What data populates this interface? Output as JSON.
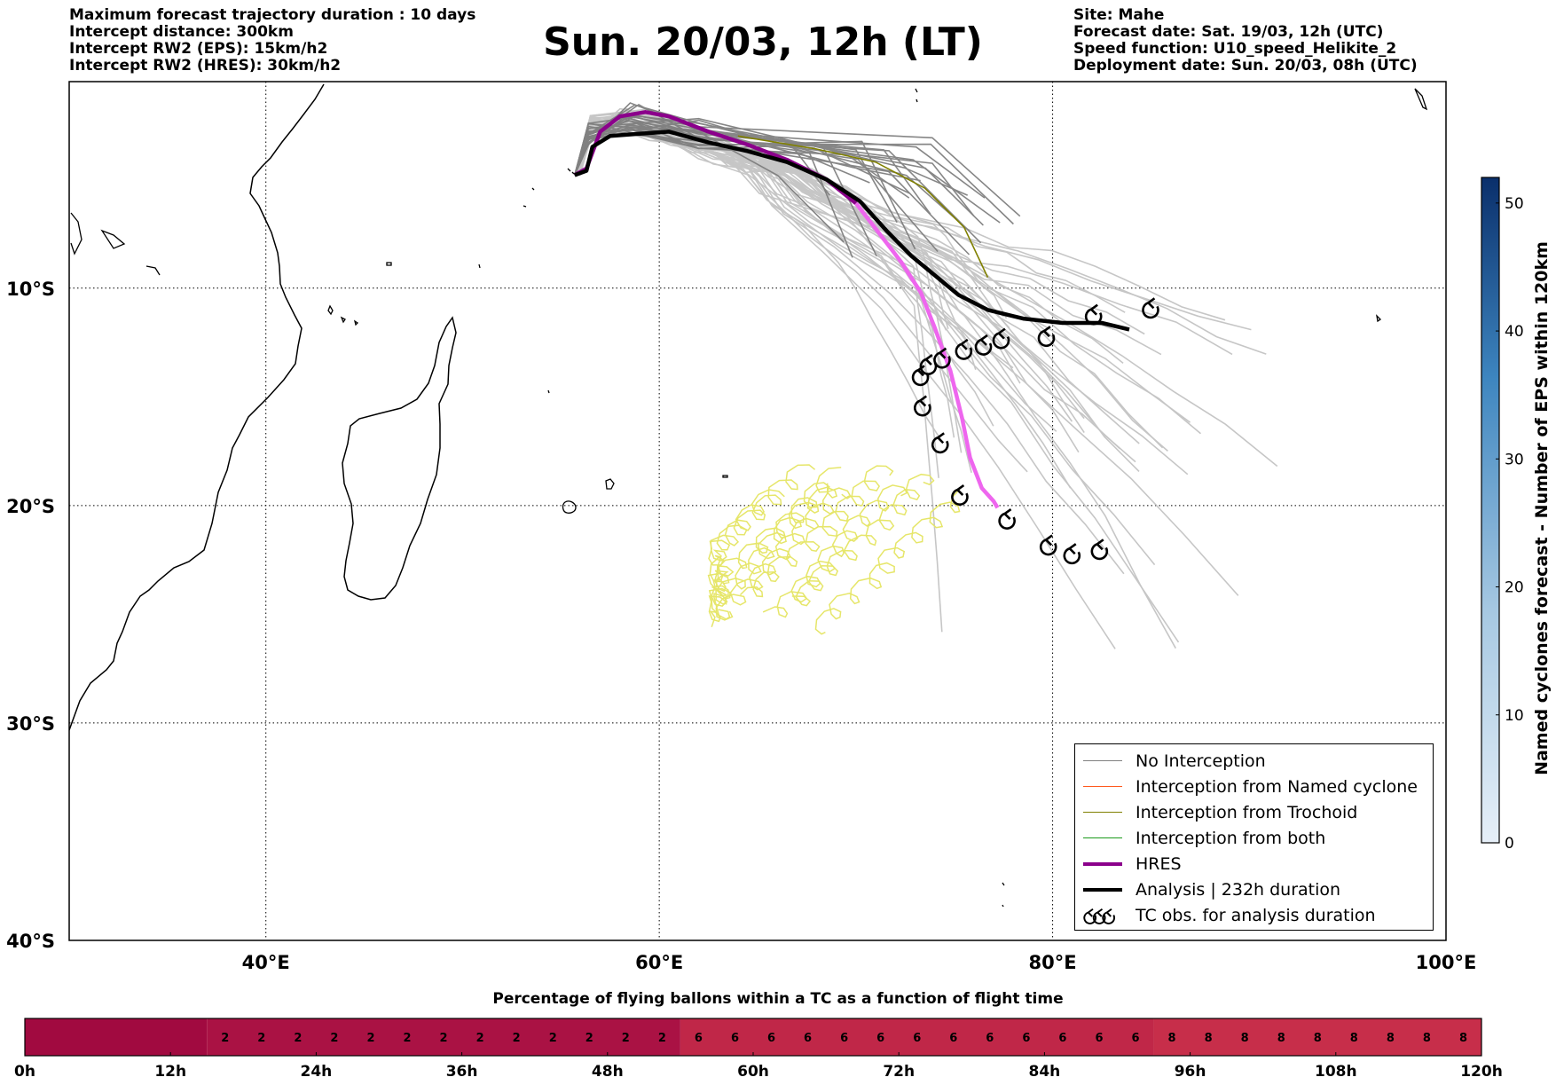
{
  "header": {
    "title": "Sun. 20/03, 12h (LT)",
    "left_lines": [
      "Maximum forecast trajectory duration : 10 days",
      "Intercept distance: 300km",
      "Intercept RW2 (EPS):  15km/h2",
      "Intercept RW2 (HRES): 30km/h2"
    ],
    "right_lines": [
      "Site: Mahe",
      "Forecast date: Sat. 19/03, 12h (UTC)",
      "Speed function: U10_speed_Helikite_2",
      "Deployment date: Sun. 20/03, 08h (UTC)"
    ]
  },
  "map": {
    "lon_range": [
      30,
      100
    ],
    "lat_range": [
      -40,
      -0.5
    ],
    "lon_ticks": [
      {
        "value": 40,
        "label": "40°E"
      },
      {
        "value": 60,
        "label": "60°E"
      },
      {
        "value": 80,
        "label": "80°E"
      },
      {
        "value": 100,
        "label": "100°E"
      }
    ],
    "lat_ticks": [
      {
        "value": -10,
        "label": "10°S"
      },
      {
        "value": -20,
        "label": "20°S"
      },
      {
        "value": -30,
        "label": "30°S"
      },
      {
        "value": -40,
        "label": "40°S"
      }
    ],
    "grid": "dotted"
  },
  "legend": {
    "items": [
      {
        "label": "No Interception",
        "color": "#808080",
        "style": "line-thin"
      },
      {
        "label": "Interception from Named cyclone",
        "color": "#ff5a1e",
        "style": "line-thin"
      },
      {
        "label": "Interception from Trochoid",
        "color": "#808000",
        "style": "line-thin"
      },
      {
        "label": "Interception from both",
        "color": "#1a9a1a",
        "style": "line-thin"
      },
      {
        "label": "HRES",
        "color": "#8b008b",
        "style": "line-thick"
      },
      {
        "label": "Analysis | 232h duration",
        "color": "#000000",
        "style": "line-thick"
      },
      {
        "label": "TC obs. for analysis duration",
        "color": "#000000",
        "style": "tc-symbol",
        "icon": "cyclone-icon"
      }
    ]
  },
  "chart_data": {
    "type": "map",
    "tracks": {
      "analysis": [
        [
          55.7,
          -4.8
        ],
        [
          56.3,
          -4.6
        ],
        [
          56.6,
          -3.5
        ],
        [
          57.5,
          -3.0
        ],
        [
          59.0,
          -2.9
        ],
        [
          60.5,
          -2.8
        ],
        [
          62.5,
          -3.3
        ],
        [
          64.5,
          -3.7
        ],
        [
          66.5,
          -4.2
        ],
        [
          68.5,
          -5.0
        ],
        [
          70.2,
          -6.0
        ],
        [
          71.6,
          -7.4
        ],
        [
          72.8,
          -8.5
        ],
        [
          74.0,
          -9.4
        ],
        [
          75.2,
          -10.3
        ],
        [
          76.7,
          -11.0
        ],
        [
          78.5,
          -11.4
        ],
        [
          80.5,
          -11.6
        ],
        [
          82.5,
          -11.6
        ],
        [
          83.9,
          -11.9
        ]
      ],
      "hres": [
        [
          55.7,
          -4.8
        ],
        [
          56.3,
          -4.5
        ],
        [
          57.0,
          -2.8
        ],
        [
          58.0,
          -2.1
        ],
        [
          59.3,
          -1.9
        ],
        [
          60.5,
          -2.1
        ],
        [
          62.5,
          -2.8
        ],
        [
          64.5,
          -3.4
        ],
        [
          66.5,
          -4.1
        ],
        [
          68.5,
          -5.0
        ],
        [
          70.0,
          -6.1
        ],
        [
          71.2,
          -7.5
        ],
        [
          72.3,
          -8.8
        ],
        [
          73.3,
          -10.2
        ],
        [
          74.0,
          -11.8
        ],
        [
          74.8,
          -13.8
        ],
        [
          75.4,
          -16.0
        ],
        [
          75.8,
          -17.8
        ],
        [
          76.4,
          -19.2
        ],
        [
          77.0,
          -19.8
        ],
        [
          77.2,
          -20.1
        ]
      ],
      "hres_late_color": "#ee66ee",
      "trochoid_interception": [
        [
          64.0,
          -3.0
        ],
        [
          68.0,
          -3.6
        ],
        [
          71.0,
          -4.2
        ],
        [
          73.5,
          -5.4
        ],
        [
          75.5,
          -7.2
        ],
        [
          76.7,
          -9.5
        ]
      ],
      "tc_observations": [
        [
          85.0,
          -11.0
        ],
        [
          82.1,
          -11.3
        ],
        [
          79.7,
          -12.3
        ],
        [
          77.4,
          -12.4
        ],
        [
          76.5,
          -12.7
        ],
        [
          75.5,
          -12.9
        ],
        [
          74.4,
          -13.3
        ],
        [
          73.7,
          -13.6
        ],
        [
          73.3,
          -14.1
        ],
        [
          73.4,
          -15.5
        ],
        [
          74.3,
          -17.2
        ],
        [
          75.3,
          -19.6
        ],
        [
          77.7,
          -20.7
        ],
        [
          79.8,
          -21.9
        ],
        [
          81.0,
          -22.3
        ],
        [
          82.4,
          -22.1
        ]
      ]
    }
  },
  "right_colorbar": {
    "label": "Named cyclones forecast - Number of EPS within 120km",
    "range": [
      0,
      52
    ],
    "ticks": [
      {
        "value": 0,
        "label": "0"
      },
      {
        "value": 10,
        "label": "10"
      },
      {
        "value": 20,
        "label": "20"
      },
      {
        "value": 30,
        "label": "30"
      },
      {
        "value": 40,
        "label": "40"
      },
      {
        "value": 50,
        "label": "50"
      }
    ],
    "color_low": "#e6eff8",
    "color_high": "#0a2f6b"
  },
  "bottom_colorbar": {
    "title": "Percentage of flying ballons within a TC as a function of flight time",
    "hours_max": 120,
    "cell_hours": 3,
    "segments": [
      {
        "from": 0,
        "to": 15,
        "value": "",
        "color": "#a10a40"
      },
      {
        "from": 15,
        "to": 54,
        "value": "2",
        "color": "#aa1244"
      },
      {
        "from": 54,
        "to": 93,
        "value": "6",
        "color": "#c02748"
      },
      {
        "from": 93,
        "to": 120,
        "value": "8",
        "color": "#c72e4a"
      }
    ],
    "ticks": [
      "0h",
      "12h",
      "24h",
      "36h",
      "48h",
      "60h",
      "72h",
      "84h",
      "96h",
      "108h",
      "120h"
    ]
  }
}
